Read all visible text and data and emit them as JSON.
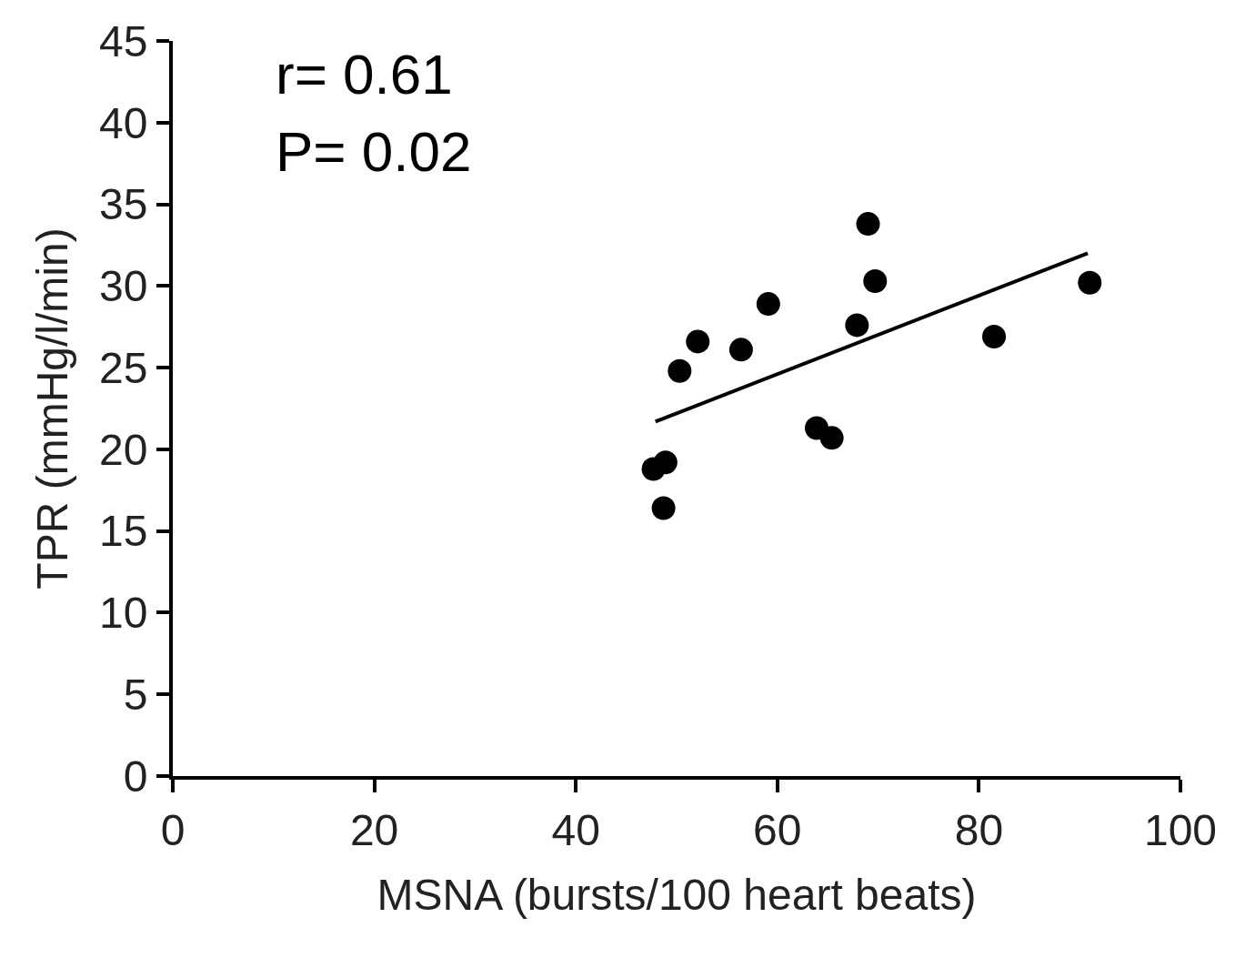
{
  "chart_data": {
    "type": "scatter",
    "xlabel": "MSNA (bursts/100 heart beats)",
    "ylabel": "TPR (mmHg/l/min)",
    "annotations": [
      "r= 0.61",
      "P= 0.02"
    ],
    "xlim": [
      0,
      100
    ],
    "xticks": [
      0,
      20,
      40,
      60,
      80,
      100
    ],
    "ylim": [
      0,
      45
    ],
    "yticks": [
      0,
      5,
      10,
      15,
      20,
      25,
      30,
      35,
      40,
      45
    ],
    "grid": false,
    "series": [
      {
        "marker": "circle",
        "color": "#000000",
        "x": [
          47.7,
          48.9,
          48.7,
          50.3,
          52.1,
          56.4,
          59.1,
          63.9,
          65.4,
          67.9,
          69.0,
          69.7,
          81.5,
          91.0
        ],
        "values": [
          18.8,
          19.2,
          16.4,
          24.8,
          26.6,
          26.1,
          28.9,
          21.3,
          20.7,
          27.6,
          33.8,
          30.3,
          26.9,
          30.2
        ]
      },
      {
        "type": "line",
        "color": "#000000",
        "x": [
          47.9,
          90.8
        ],
        "values": [
          21.7,
          32.0
        ]
      }
    ]
  }
}
